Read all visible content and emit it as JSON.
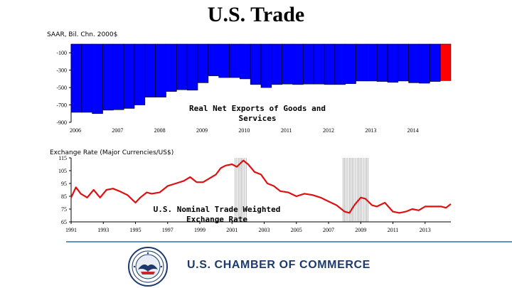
{
  "page": {
    "title": "U.S. Trade",
    "footer_brand": "U.S. CHAMBER OF COMMERCE",
    "divider_color": "#5b93c4",
    "brand_color": "#1d3a6e"
  },
  "chart_data": [
    {
      "type": "bar",
      "title": "Real Net Exports of Goods and Services",
      "unit_label": "SAAR, Bil. Chn. 2000$",
      "ylim": [
        -900,
        0
      ],
      "yticks": [
        -100,
        -300,
        -500,
        -700,
        -900
      ],
      "x_tick_labels": [
        "2006",
        "2007",
        "2008",
        "2009",
        "2010",
        "2011",
        "2012",
        "2013",
        "2014"
      ],
      "colors": {
        "bar": "#0000ff",
        "highlight": "#ff0000"
      },
      "categories": [
        "2006Q1",
        "2006Q2",
        "2006Q3",
        "2006Q4",
        "2007Q1",
        "2007Q2",
        "2007Q3",
        "2007Q4",
        "2008Q1",
        "2008Q2",
        "2008Q3",
        "2008Q4",
        "2009Q1",
        "2009Q2",
        "2009Q3",
        "2009Q4",
        "2010Q1",
        "2010Q2",
        "2010Q3",
        "2010Q4",
        "2011Q1",
        "2011Q2",
        "2011Q3",
        "2011Q4",
        "2012Q1",
        "2012Q2",
        "2012Q3",
        "2012Q4",
        "2013Q1",
        "2013Q2",
        "2013Q3",
        "2013Q4",
        "2014Q1",
        "2014Q2",
        "2014Q3",
        "2014Q4"
      ],
      "values": [
        -785,
        -785,
        -800,
        -760,
        -755,
        -740,
        -700,
        -610,
        -610,
        -545,
        -525,
        -530,
        -445,
        -365,
        -385,
        -385,
        -400,
        -465,
        -500,
        -465,
        -460,
        -465,
        -460,
        -460,
        -465,
        -465,
        -455,
        -425,
        -425,
        -430,
        -440,
        -425,
        -445,
        -450,
        -430,
        -420
      ],
      "highlight_index": 35
    },
    {
      "type": "line",
      "title": "U.S. Nominal Trade Weighted Exchange Rate",
      "unit_label": "Exchange Rate (Major Currencies/US$)",
      "ylim": [
        65,
        115
      ],
      "yticks": [
        115,
        105,
        95,
        85,
        75,
        65
      ],
      "x_tick_labels": [
        "1991",
        "1993",
        "1995",
        "1997",
        "1999",
        "2001",
        "2003",
        "2005",
        "2007",
        "2009",
        "2011",
        "2013"
      ],
      "xlim": [
        1991,
        2014.6
      ],
      "colors": {
        "line": "#dd1111",
        "recession": "#888888"
      },
      "recession_bands": [
        [
          2001.2,
          2001.9
        ],
        [
          2007.9,
          2009.5
        ]
      ],
      "x": [
        1991,
        1991.3,
        1991.6,
        1992,
        1992.4,
        1992.8,
        1993.2,
        1993.6,
        1994,
        1994.5,
        1995,
        1995.3,
        1995.7,
        1996,
        1996.5,
        1997,
        1997.5,
        1998,
        1998.4,
        1998.8,
        1999.2,
        1999.6,
        2000,
        2000.3,
        2000.6,
        2001,
        2001.3,
        2001.7,
        2002,
        2002.4,
        2002.8,
        2003.2,
        2003.6,
        2004,
        2004.5,
        2005,
        2005.5,
        2006,
        2006.5,
        2007,
        2007.5,
        2008,
        2008.3,
        2008.6,
        2009,
        2009.3,
        2009.7,
        2010,
        2010.5,
        2011,
        2011.4,
        2011.8,
        2012.2,
        2012.6,
        2013,
        2013.5,
        2014,
        2014.3,
        2014.6
      ],
      "values": [
        84,
        92,
        87,
        84,
        90,
        84,
        90,
        91,
        89,
        86,
        80,
        84,
        88,
        87,
        88,
        93,
        95,
        97,
        100,
        96,
        96,
        99,
        102,
        107,
        109,
        110,
        108,
        113,
        110,
        104,
        102,
        95,
        93,
        89,
        88,
        85,
        87,
        86,
        84,
        81,
        78,
        73,
        72,
        78,
        84,
        83,
        78,
        77,
        80,
        73,
        72,
        73,
        75,
        74,
        77,
        77,
        77,
        76,
        79
      ]
    }
  ]
}
